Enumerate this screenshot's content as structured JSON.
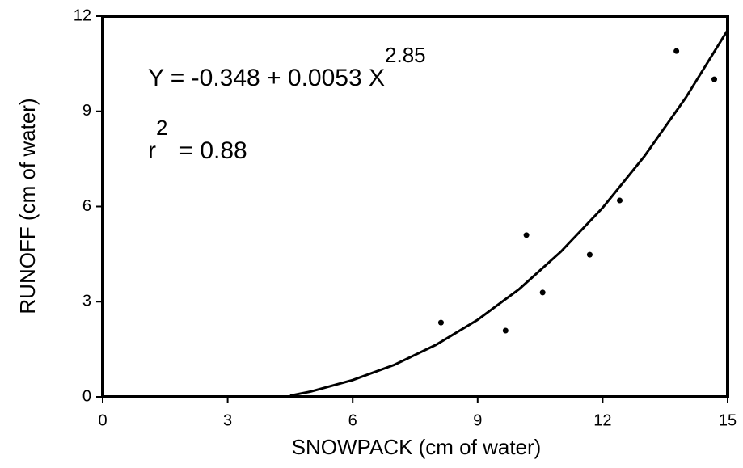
{
  "chart_data": {
    "type": "scatter",
    "x_label": "SNOWPACK (cm of water)",
    "y_label": "RUNOFF (cm of water)",
    "annotations": [
      {
        "text": "Y = -0.348 + 0.0053 X",
        "superscript": "2.85"
      },
      {
        "text": "r",
        "superscript": "2",
        "suffix": "= 0.88"
      }
    ],
    "series": [
      {
        "color": "#000000",
        "x": [
          8.12,
          9.67,
          10.17,
          10.56,
          11.69,
          12.41,
          13.77,
          14.68
        ],
        "values": [
          2.34,
          2.09,
          5.1,
          3.29,
          4.48,
          6.19,
          10.9,
          10.01
        ]
      },
      {
        "color": "#000000",
        "line": true,
        "x": [
          4.5,
          5,
          6,
          7,
          8,
          9,
          10,
          11,
          12,
          13,
          14,
          15
        ],
        "values": [
          0.04,
          0.17,
          0.53,
          1.01,
          1.64,
          2.43,
          3.4,
          4.58,
          5.96,
          7.58,
          9.44,
          11.56
        ]
      }
    ],
    "xlim": [
      0,
      15
    ],
    "xticks": [
      0,
      3,
      6,
      9,
      12,
      15
    ],
    "ylim": [
      0,
      12
    ],
    "yticks": [
      0,
      3,
      6,
      9,
      12
    ]
  }
}
